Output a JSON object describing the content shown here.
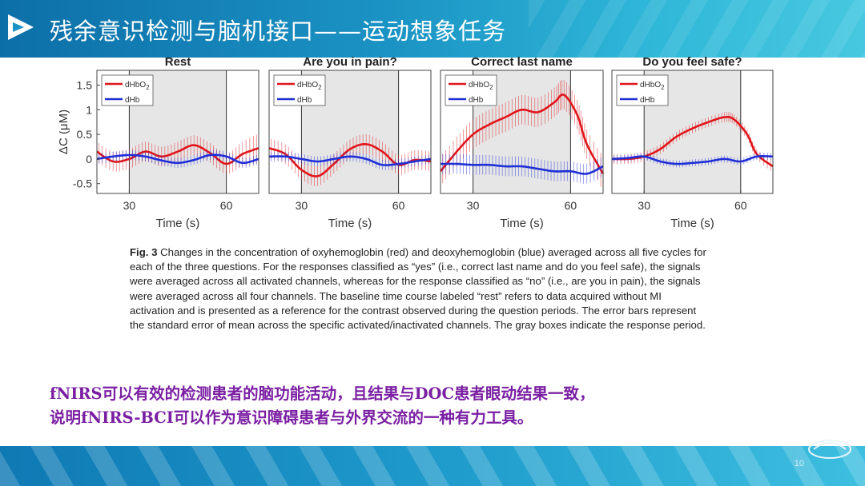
{
  "slide": {
    "title": "残余意识检测与脑机接口——运动想象任务",
    "page_number": "10",
    "caption_label": "Fig. 3",
    "caption_text": "Changes in the concentration of oxyhemoglobin (red) and deoxyhemoglobin (blue) averaged across all five cycles for each of the three questions. For the responses classified as “yes” (i.e., correct last name and do you feel safe), the signals were averaged across all activated channels, whereas for the response classified as “no” (i.e., are you in pain), the signals were averaged across all four channels. The baseline time course labeled “rest” refers to data acquired without MI activation and is presented as a reference for the contrast observed during the question periods. The error bars represent the standard error of mean across the specific activated/inactivated channels. The gray boxes indicate the response period.",
    "conclusion_line1": "fNIRS可以有效的检测患者的脑功能活动，且结果与DOC患者眼动结果一致，",
    "conclusion_line2": "说明fNIRS-BCI可以作为意识障碍患者与外界交流的一种有力工具。",
    "colors": {
      "header": "#1b93c4",
      "oxy": "#e0161b",
      "deoxy": "#1f2fd6",
      "conclusion": "#7a1fa2",
      "response_box": "#e6e6e6"
    },
    "icons": [
      "play-logo-icon",
      "footer-logo-icon"
    ]
  },
  "chart_data": [
    {
      "type": "line",
      "title": "Rest",
      "xlabel": "Time (s)",
      "ylabel": "ΔC (μM)",
      "xlim": [
        20,
        70
      ],
      "ylim": [
        -0.7,
        1.8
      ],
      "xticks": [
        "30",
        "60"
      ],
      "yticks": [
        "-0.5",
        "0",
        "0.5",
        "1",
        "1.5"
      ],
      "response_period": [
        30,
        60
      ],
      "series": [
        {
          "name": "dHbO2",
          "x": [
            20,
            25,
            30,
            35,
            40,
            45,
            50,
            55,
            60,
            65,
            70
          ],
          "y": [
            0.15,
            -0.05,
            0.0,
            0.15,
            0.05,
            0.15,
            0.28,
            0.12,
            -0.1,
            0.1,
            0.22
          ],
          "err": [
            0.2,
            0.2,
            0.2,
            0.2,
            0.2,
            0.2,
            0.2,
            0.2,
            0.2,
            0.25,
            0.3
          ]
        },
        {
          "name": "dHb",
          "x": [
            20,
            25,
            30,
            35,
            40,
            45,
            50,
            55,
            60,
            65,
            70
          ],
          "y": [
            0.0,
            0.05,
            0.08,
            0.05,
            -0.03,
            -0.08,
            -0.02,
            0.08,
            0.05,
            -0.08,
            0.0
          ],
          "err": [
            0.1,
            0.1,
            0.1,
            0.1,
            0.1,
            0.1,
            0.1,
            0.1,
            0.1,
            0.1,
            0.1
          ]
        }
      ]
    },
    {
      "type": "line",
      "title": "Are you in pain?",
      "xlabel": "Time (s)",
      "ylabel": "",
      "xlim": [
        20,
        70
      ],
      "ylim": [
        -0.7,
        1.8
      ],
      "xticks": [
        "30",
        "60"
      ],
      "yticks": [],
      "response_period": [
        30,
        60
      ],
      "series": [
        {
          "name": "dHbO2",
          "x": [
            20,
            25,
            30,
            35,
            40,
            45,
            50,
            55,
            60,
            65,
            70
          ],
          "y": [
            0.22,
            0.1,
            -0.22,
            -0.35,
            -0.1,
            0.2,
            0.3,
            0.15,
            -0.12,
            -0.02,
            -0.05
          ],
          "err": [
            0.2,
            0.2,
            0.2,
            0.2,
            0.2,
            0.2,
            0.2,
            0.2,
            0.2,
            0.2,
            0.2
          ]
        },
        {
          "name": "dHb",
          "x": [
            20,
            25,
            30,
            35,
            40,
            45,
            50,
            55,
            60,
            65,
            70
          ],
          "y": [
            0.05,
            0.05,
            0.0,
            -0.05,
            0.0,
            0.05,
            0.0,
            -0.12,
            -0.1,
            -0.05,
            0.0
          ],
          "err": [
            0.1,
            0.1,
            0.1,
            0.1,
            0.1,
            0.1,
            0.1,
            0.1,
            0.1,
            0.1,
            0.1
          ]
        }
      ]
    },
    {
      "type": "line",
      "title": "Correct last name",
      "xlabel": "Time (s)",
      "ylabel": "",
      "xlim": [
        20,
        70
      ],
      "ylim": [
        -0.7,
        1.8
      ],
      "xticks": [
        "30",
        "60"
      ],
      "yticks": [],
      "response_period": [
        30,
        60
      ],
      "series": [
        {
          "name": "dHbO2",
          "x": [
            20,
            25,
            30,
            35,
            40,
            45,
            50,
            55,
            58,
            62,
            65,
            70
          ],
          "y": [
            -0.25,
            0.15,
            0.5,
            0.7,
            0.85,
            1.0,
            0.95,
            1.15,
            1.3,
            0.9,
            0.3,
            -0.3
          ],
          "err": [
            0.3,
            0.3,
            0.3,
            0.3,
            0.3,
            0.3,
            0.3,
            0.3,
            0.3,
            0.3,
            0.3,
            0.35
          ]
        },
        {
          "name": "dHb",
          "x": [
            20,
            25,
            30,
            35,
            40,
            45,
            50,
            55,
            60,
            65,
            70
          ],
          "y": [
            -0.1,
            -0.1,
            -0.12,
            -0.12,
            -0.15,
            -0.15,
            -0.2,
            -0.25,
            -0.25,
            -0.3,
            -0.15
          ],
          "err": [
            0.2,
            0.2,
            0.2,
            0.2,
            0.2,
            0.2,
            0.2,
            0.2,
            0.2,
            0.2,
            0.2
          ]
        }
      ]
    },
    {
      "type": "line",
      "title": "Do you feel safe?",
      "xlabel": "Time (s)",
      "ylabel": "",
      "xlim": [
        20,
        70
      ],
      "ylim": [
        -0.7,
        1.8
      ],
      "xticks": [
        "30",
        "60"
      ],
      "yticks": [],
      "response_period": [
        30,
        60
      ],
      "series": [
        {
          "name": "dHbO2",
          "x": [
            20,
            25,
            30,
            35,
            40,
            45,
            50,
            55,
            58,
            62,
            65,
            70
          ],
          "y": [
            0.0,
            0.0,
            0.05,
            0.2,
            0.45,
            0.62,
            0.75,
            0.85,
            0.8,
            0.5,
            0.1,
            -0.15
          ],
          "err": [
            0.1,
            0.1,
            0.1,
            0.1,
            0.1,
            0.1,
            0.1,
            0.1,
            0.1,
            0.1,
            0.1,
            0.12
          ]
        },
        {
          "name": "dHb",
          "x": [
            20,
            25,
            30,
            35,
            40,
            45,
            50,
            55,
            60,
            65,
            70
          ],
          "y": [
            0.0,
            0.02,
            0.05,
            -0.05,
            -0.1,
            -0.08,
            -0.05,
            0.0,
            -0.05,
            0.05,
            0.05
          ],
          "err": [
            0.07,
            0.07,
            0.07,
            0.07,
            0.07,
            0.07,
            0.07,
            0.07,
            0.07,
            0.07,
            0.07
          ]
        }
      ]
    }
  ]
}
